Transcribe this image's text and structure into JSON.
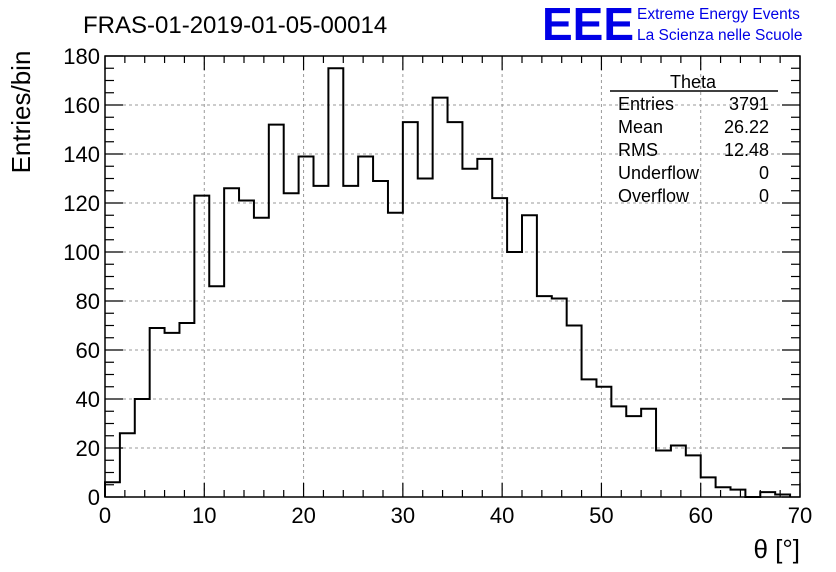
{
  "chart_data": {
    "type": "bar",
    "style": "step-histogram",
    "title": "FRAS-01-2019-01-05-00014",
    "xlabel": "θ [°]",
    "ylabel": "Entries/bin",
    "xlim": [
      0,
      70
    ],
    "ylim": [
      0,
      180
    ],
    "grid": true,
    "bin_width": 1.5,
    "bin_edges_start": 0,
    "values": [
      6,
      26,
      40,
      69,
      67,
      71,
      123,
      86,
      126,
      121,
      114,
      152,
      124,
      139,
      127,
      175,
      127,
      139,
      129,
      116,
      153,
      130,
      163,
      153,
      134,
      138,
      122,
      100,
      115,
      82,
      81,
      70,
      48,
      45,
      37,
      33,
      36,
      19,
      21,
      17,
      8,
      4,
      3,
      0,
      2,
      1
    ],
    "x_ticks": [
      0,
      10,
      20,
      30,
      40,
      50,
      60,
      70
    ],
    "y_ticks": [
      0,
      20,
      40,
      60,
      80,
      100,
      120,
      140,
      160,
      180
    ],
    "stats_box": {
      "title": "Theta",
      "placement": "top-right",
      "rows": [
        {
          "label": "Entries",
          "value": "3791"
        },
        {
          "label": "Mean",
          "value": "26.22"
        },
        {
          "label": "RMS",
          "value": "12.48"
        },
        {
          "label": "Underflow",
          "value": "0"
        },
        {
          "label": "Overflow",
          "value": "0"
        }
      ]
    }
  },
  "logo": {
    "mark": "EEE",
    "line1": "Extreme Energy Events",
    "line2": "La Scienza nelle Scuole",
    "color": "#0000e6"
  }
}
